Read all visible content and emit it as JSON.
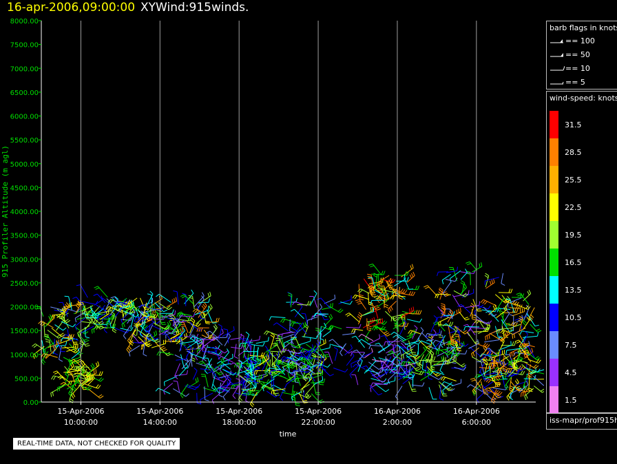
{
  "header": {
    "date": "16-apr-2006,09:00:00",
    "name": "XYWind:915winds."
  },
  "chart_data": {
    "type": "scatter",
    "title": "16-apr-2006,09:00:00 XYWind:915winds.",
    "xlabel": "time",
    "ylabel": "915 Profiler Altitude (m agl)",
    "ylim": [
      0,
      8000
    ],
    "y_ticks": [
      "0.00",
      "500.00",
      "1000.00",
      "1500.00",
      "2000.00",
      "2500.00",
      "3000.00",
      "3500.00",
      "4000.00",
      "4500.00",
      "5000.00",
      "5500.00",
      "6000.00",
      "6500.00",
      "7000.00",
      "7500.00",
      "8000.00"
    ],
    "xlim": [
      "15-Apr-2006 08:00",
      "16-Apr-2006 09:00"
    ],
    "x_ticks": [
      {
        "date": "15-Apr-2006",
        "time": "10:00:00"
      },
      {
        "date": "15-Apr-2006",
        "time": "14:00:00"
      },
      {
        "date": "15-Apr-2006",
        "time": "18:00:00"
      },
      {
        "date": "15-Apr-2006",
        "time": "22:00:00"
      },
      {
        "date": "16-Apr-2006",
        "time": "2:00:00"
      },
      {
        "date": "16-Apr-2006",
        "time": "6:00:00"
      }
    ],
    "grid": "vertical",
    "series": [
      {
        "time_range": [
          "15-Apr-2006 08:00",
          "15-Apr-2006 10:00"
        ],
        "altitude_range": [
          900,
          2100
        ],
        "speed_range": [
          7,
          27
        ]
      },
      {
        "time_range": [
          "15-Apr-2006 09:00",
          "15-Apr-2006 10:30"
        ],
        "altitude_range": [
          250,
          750
        ],
        "speed_range": [
          15,
          25
        ]
      },
      {
        "time_range": [
          "15-Apr-2006 10:00",
          "15-Apr-2006 13:00"
        ],
        "altitude_range": [
          1500,
          2200
        ],
        "speed_range": [
          8,
          24
        ]
      },
      {
        "time_range": [
          "15-Apr-2006 12:30",
          "15-Apr-2006 16:30"
        ],
        "altitude_range": [
          1100,
          2100
        ],
        "speed_range": [
          5,
          28
        ]
      },
      {
        "time_range": [
          "15-Apr-2006 14:30",
          "15-Apr-2006 19:00"
        ],
        "altitude_range": [
          150,
          1400
        ],
        "speed_range": [
          3,
          16
        ]
      },
      {
        "time_range": [
          "15-Apr-2006 18:00",
          "15-Apr-2006 22:00"
        ],
        "altitude_range": [
          150,
          1200
        ],
        "speed_range": [
          9,
          22
        ]
      },
      {
        "time_range": [
          "15-Apr-2006 20:00",
          "15-Apr-2006 23:30"
        ],
        "altitude_range": [
          600,
          2100
        ],
        "speed_range": [
          3,
          20
        ]
      },
      {
        "time_range": [
          "16-Apr-2006 00:00",
          "16-Apr-2006 02:30"
        ],
        "altitude_range": [
          1500,
          2700
        ],
        "speed_range": [
          12,
          32
        ]
      },
      {
        "time_range": [
          "16-Apr-2006 00:00",
          "16-Apr-2006 02:30"
        ],
        "altitude_range": [
          350,
          1300
        ],
        "speed_range": [
          2,
          15
        ]
      },
      {
        "time_range": [
          "16-Apr-2006 02:00",
          "16-Apr-2006 05:00"
        ],
        "altitude_range": [
          300,
          1500
        ],
        "speed_range": [
          5,
          22
        ]
      },
      {
        "time_range": [
          "16-Apr-2006 04:00",
          "16-Apr-2006 07:30"
        ],
        "altitude_range": [
          900,
          2800
        ],
        "speed_range": [
          4,
          30
        ]
      },
      {
        "time_range": [
          "16-Apr-2006 06:00",
          "16-Apr-2006 09:00"
        ],
        "altitude_range": [
          200,
          1000
        ],
        "speed_range": [
          6,
          30
        ]
      },
      {
        "time_range": [
          "16-Apr-2006 07:00",
          "16-Apr-2006 09:00"
        ],
        "altitude_range": [
          800,
          2200
        ],
        "speed_range": [
          6,
          30
        ]
      }
    ]
  },
  "legend": {
    "barb_title": "barb flags in knots",
    "barbs": [
      {
        "label": "== 100"
      },
      {
        "label": "== 50"
      },
      {
        "label": "== 10"
      },
      {
        "label": "== 5"
      }
    ],
    "speed_title": "wind-speed: knots",
    "colorbar": [
      {
        "label": "31.5",
        "color": "#ff0000"
      },
      {
        "label": "28.5",
        "color": "#ff8000"
      },
      {
        "label": "25.5",
        "color": "#ffb000"
      },
      {
        "label": "22.5",
        "color": "#ffff00"
      },
      {
        "label": "19.5",
        "color": "#a0ff30"
      },
      {
        "label": "16.5",
        "color": "#00e000"
      },
      {
        "label": "13.5",
        "color": "#00ffff"
      },
      {
        "label": "10.5",
        "color": "#0000ff"
      },
      {
        "label": "7.5",
        "color": "#6a8cff"
      },
      {
        "label": "4.5",
        "color": "#9a30ff"
      },
      {
        "label": "1.5",
        "color": "#f080f0"
      }
    ],
    "source": "iss-mapr/prof915h"
  },
  "footer": {
    "note": "REAL-TIME DATA, NOT CHECKED FOR QUALITY"
  }
}
